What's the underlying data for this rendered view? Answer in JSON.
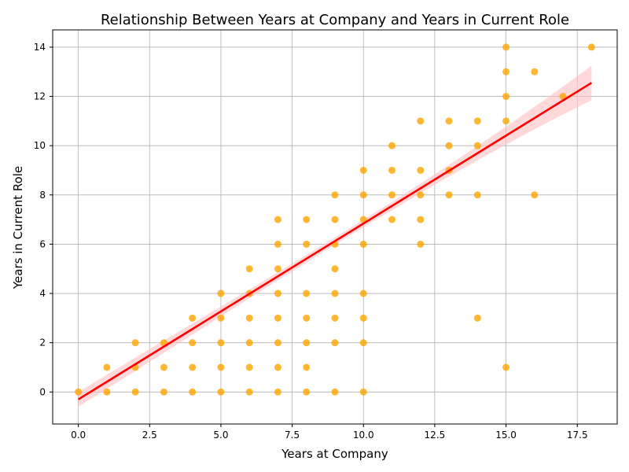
{
  "chart_data": {
    "type": "scatter",
    "title": "Relationship Between Years at Company and Years in Current Role",
    "xlabel": "Years at Company",
    "ylabel": "Years in Current Role",
    "xlim": [
      -0.9,
      18.9
    ],
    "ylim": [
      -1.3,
      14.7
    ],
    "xticks": [
      "0.0",
      "2.5",
      "5.0",
      "7.5",
      "10.0",
      "12.5",
      "15.0",
      "17.5"
    ],
    "xtick_values": [
      0,
      2.5,
      5,
      7.5,
      10,
      12.5,
      15,
      17.5
    ],
    "yticks": [
      "0",
      "2",
      "4",
      "6",
      "8",
      "10",
      "12",
      "14"
    ],
    "ytick_values": [
      0,
      2,
      4,
      6,
      8,
      10,
      12,
      14
    ],
    "grid": true,
    "point_color": "#ffa500",
    "regression": {
      "color": "#ff0000",
      "band_color": "#ffc0c0",
      "x": [
        0,
        18
      ],
      "y": [
        -0.3,
        12.55
      ],
      "ci_lower": [
        -0.6,
        11.85
      ],
      "ci_upper": [
        0.0,
        13.25
      ]
    },
    "points": [
      [
        0,
        0
      ],
      [
        1,
        0
      ],
      [
        1,
        1
      ],
      [
        2,
        0
      ],
      [
        2,
        1
      ],
      [
        2,
        2
      ],
      [
        3,
        0
      ],
      [
        3,
        1
      ],
      [
        3,
        2
      ],
      [
        4,
        0
      ],
      [
        4,
        1
      ],
      [
        4,
        2
      ],
      [
        4,
        3
      ],
      [
        5,
        0
      ],
      [
        5,
        1
      ],
      [
        5,
        2
      ],
      [
        5,
        3
      ],
      [
        5,
        4
      ],
      [
        6,
        0
      ],
      [
        6,
        1
      ],
      [
        6,
        2
      ],
      [
        6,
        3
      ],
      [
        6,
        4
      ],
      [
        6,
        5
      ],
      [
        7,
        0
      ],
      [
        7,
        1
      ],
      [
        7,
        2
      ],
      [
        7,
        3
      ],
      [
        7,
        4
      ],
      [
        7,
        5
      ],
      [
        7,
        6
      ],
      [
        7,
        7
      ],
      [
        8,
        0
      ],
      [
        8,
        1
      ],
      [
        8,
        2
      ],
      [
        8,
        3
      ],
      [
        8,
        4
      ],
      [
        8,
        6
      ],
      [
        8,
        7
      ],
      [
        9,
        0
      ],
      [
        9,
        2
      ],
      [
        9,
        3
      ],
      [
        9,
        4
      ],
      [
        9,
        5
      ],
      [
        9,
        6
      ],
      [
        9,
        7
      ],
      [
        9,
        8
      ],
      [
        10,
        0
      ],
      [
        10,
        2
      ],
      [
        10,
        3
      ],
      [
        10,
        4
      ],
      [
        10,
        6
      ],
      [
        10,
        7
      ],
      [
        10,
        8
      ],
      [
        10,
        9
      ],
      [
        11,
        7
      ],
      [
        11,
        8
      ],
      [
        11,
        9
      ],
      [
        11,
        10
      ],
      [
        12,
        6
      ],
      [
        12,
        7
      ],
      [
        12,
        8
      ],
      [
        12,
        9
      ],
      [
        12,
        11
      ],
      [
        13,
        8
      ],
      [
        13,
        9
      ],
      [
        13,
        10
      ],
      [
        13,
        11
      ],
      [
        14,
        3
      ],
      [
        14,
        8
      ],
      [
        14,
        10
      ],
      [
        14,
        11
      ],
      [
        15,
        1
      ],
      [
        15,
        11
      ],
      [
        15,
        12
      ],
      [
        15,
        13
      ],
      [
        15,
        14
      ],
      [
        16,
        8
      ],
      [
        16,
        13
      ],
      [
        17,
        12
      ],
      [
        18,
        14
      ]
    ]
  }
}
